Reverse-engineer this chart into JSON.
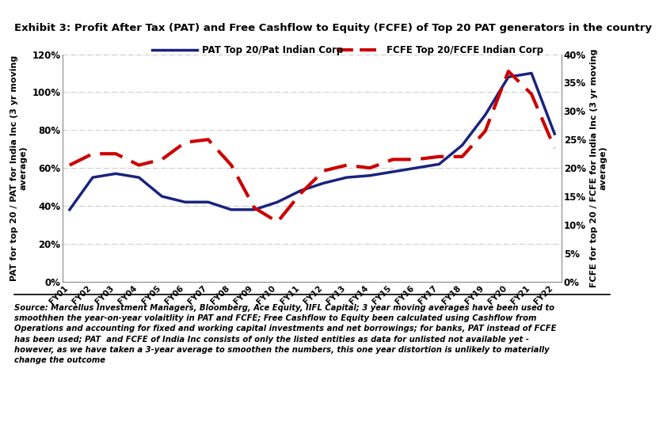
{
  "title": "Exhibit 3: Profit After Tax (PAT) and Free Cashflow to Equity (FCFE) of Top 20 PAT generators in the country",
  "years": [
    "FY01",
    "FY02",
    "FY03",
    "FY04",
    "FY05",
    "FY06",
    "FY07",
    "FY08",
    "FY09",
    "FY10",
    "FY11",
    "FY12",
    "FY13",
    "FY14",
    "FY15",
    "FY16",
    "FY17",
    "FY18",
    "FY19",
    "FY20",
    "FY21",
    "FY22"
  ],
  "pat": [
    0.38,
    0.55,
    0.57,
    0.55,
    0.45,
    0.42,
    0.42,
    0.38,
    0.38,
    0.42,
    0.48,
    0.52,
    0.55,
    0.56,
    0.58,
    0.6,
    0.62,
    0.72,
    0.88,
    1.08,
    1.1,
    0.78
  ],
  "fcfe": [
    0.205,
    0.225,
    0.225,
    0.205,
    0.215,
    0.245,
    0.25,
    0.205,
    0.13,
    0.105,
    0.155,
    0.195,
    0.205,
    0.2,
    0.215,
    0.215,
    0.22,
    0.22,
    0.265,
    0.37,
    0.33,
    0.235
  ],
  "pat_label": "PAT Top 20/Pat Indian Corp",
  "fcfe_label": "FCFE Top 20/FCFE Indian Corp",
  "pat_color": "#1a237e",
  "fcfe_color": "#cc0000",
  "yleft_label": "PAT for top 20 / PAT for India Inc (3 yr moving\naverage)",
  "yright_label": "FCFE for top 20 / FCFE for India Inc (3 yr moving\naverage)",
  "yleft_ticks": [
    0.0,
    0.2,
    0.4,
    0.6,
    0.8,
    1.0,
    1.2
  ],
  "yleft_ticklabels": [
    "0%",
    "20%",
    "40%",
    "60%",
    "80%",
    "100%",
    "120%"
  ],
  "yright_ticks": [
    0.0,
    0.05,
    0.1,
    0.15,
    0.2,
    0.25,
    0.3,
    0.35,
    0.4
  ],
  "yright_ticklabels": [
    "0%",
    "5%",
    "10%",
    "15%",
    "20%",
    "25%",
    "30%",
    "35%",
    "40%"
  ],
  "source_text": "Source: Marcellus Investment Managers, Bloomberg, Ace Equity, IIFL Capital; 3 year moving averages have been used to\nsmoothhen the year-on-year volaitlity in PAT and FCFE; Free Cashflow to Equity been calculated using Cashflow from\nOperations and accounting for fixed and working capital investments and net borrowings; for banks, PAT instead of FCFE\nhas been used; PAT  and FCFE of India Inc consists of only the listed entities as data for unlisted not available yet -\nhowever, as we have taken a 3-year average to smoothen the numbers, this one year distortion is unlikely to materially\nchange the outcome",
  "background_color": "#ffffff",
  "grid_color": "#b0b0b0"
}
